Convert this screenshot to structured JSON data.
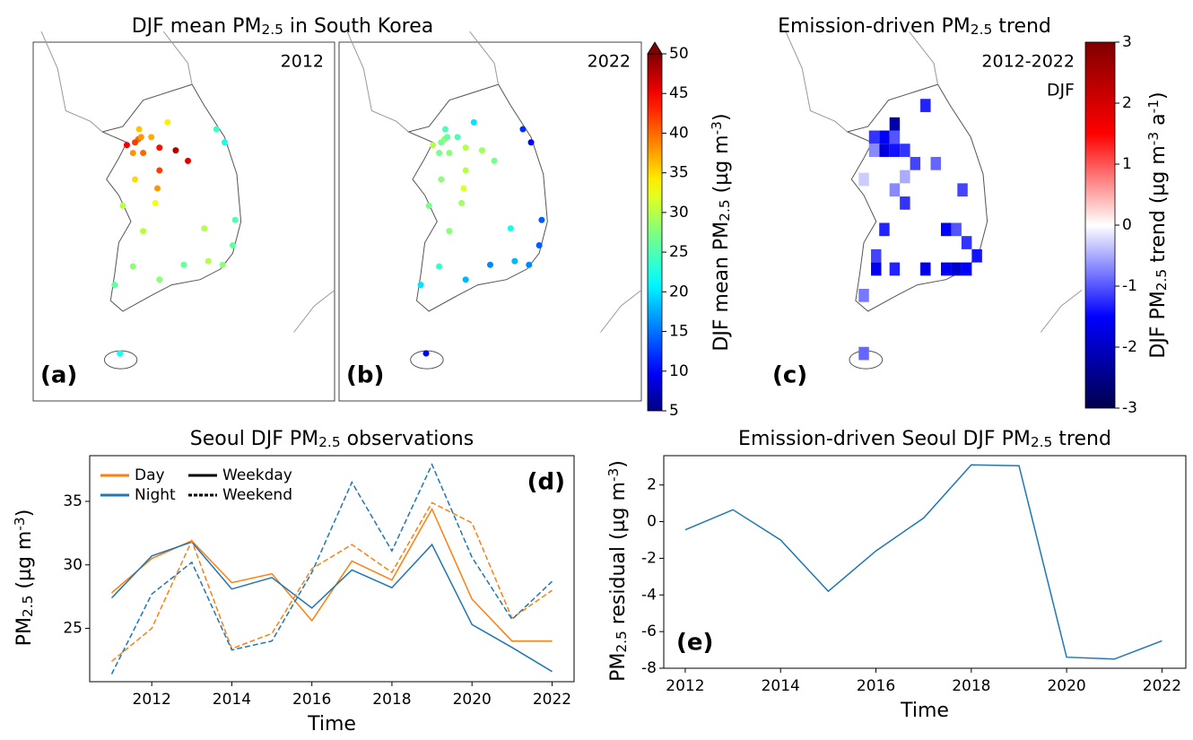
{
  "chart_data": [
    {
      "type": "map",
      "label": "(a)",
      "annotation": "2012",
      "title": [
        {
          "text": "DJF mean PM"
        },
        {
          "text": "2.5",
          "script": "sub"
        },
        {
          "text": " in South Korea"
        }
      ],
      "lonlim": [
        124.4,
        131.8
      ],
      "latlim": [
        32.6,
        39.4
      ],
      "colormap": "jet",
      "clim": [
        5,
        50
      ],
      "lon": [
        126.98,
        126.9,
        127.05,
        126.7,
        126.85,
        127.1,
        127.0,
        127.3,
        127.5,
        127.9,
        128.2,
        127.5,
        127.45,
        127.4,
        126.9,
        126.6,
        127.1,
        126.85,
        126.4,
        127.5,
        128.6,
        129.05,
        129.3,
        128.7,
        129.36,
        128.9,
        129.1,
        127.7,
        126.53,
        128.1
      ],
      "lat": [
        37.56,
        37.5,
        37.6,
        37.45,
        37.3,
        37.3,
        37.75,
        37.6,
        37.4,
        37.35,
        37.15,
        36.97,
        36.63,
        36.35,
        36.8,
        36.3,
        35.82,
        35.15,
        34.8,
        34.9,
        35.87,
        35.18,
        35.55,
        35.25,
        36.03,
        37.75,
        37.5,
        37.88,
        33.5,
        35.18
      ],
      "values": [
        40,
        42,
        38,
        45,
        38,
        40,
        36,
        37,
        44,
        48,
        46,
        42,
        38,
        33,
        35,
        30,
        30,
        28,
        26,
        28,
        30,
        28,
        26,
        30,
        25,
        24,
        22,
        34,
        22,
        26
      ]
    },
    {
      "type": "map",
      "label": "(b)",
      "annotation": "2022",
      "lonlim": [
        124.4,
        131.8
      ],
      "latlim": [
        32.6,
        39.4
      ],
      "colormap": "jet",
      "clim": [
        5,
        50
      ],
      "lon": [
        126.98,
        126.9,
        127.05,
        126.7,
        126.85,
        127.1,
        127.0,
        127.3,
        127.5,
        127.9,
        128.2,
        127.5,
        127.45,
        127.4,
        126.9,
        126.6,
        127.1,
        126.85,
        126.4,
        127.5,
        128.6,
        129.05,
        129.3,
        128.7,
        129.36,
        128.9,
        129.1,
        127.7,
        126.53,
        128.1
      ],
      "lat": [
        37.56,
        37.5,
        37.6,
        37.45,
        37.3,
        37.3,
        37.75,
        37.6,
        37.4,
        37.35,
        37.15,
        36.97,
        36.63,
        36.35,
        36.8,
        36.3,
        35.82,
        35.15,
        34.8,
        34.9,
        35.87,
        35.18,
        35.55,
        35.25,
        36.03,
        37.75,
        37.5,
        37.88,
        33.5,
        35.18
      ],
      "values": [
        28,
        27,
        26,
        30,
        27,
        28,
        25,
        25,
        30,
        29,
        27,
        30,
        32,
        29,
        28,
        27,
        28,
        24,
        20,
        18,
        22,
        16,
        14,
        18,
        14,
        12,
        10,
        20,
        10,
        16
      ],
      "colorbar": {
        "label": [
          {
            "text": "DJF mean PM"
          },
          {
            "text": "2.5",
            "script": "sub"
          },
          {
            "text": " (µg m"
          },
          {
            "text": "-3",
            "script": "sup"
          },
          {
            "text": ")"
          }
        ],
        "ticks": [
          5,
          10,
          15,
          20,
          25,
          30,
          35,
          40,
          45,
          50
        ],
        "extend": "max"
      }
    },
    {
      "type": "grid-map",
      "label": "(c)",
      "annotation": [
        "2012-2022",
        "DJF"
      ],
      "title": [
        {
          "text": "Emission-driven PM"
        },
        {
          "text": "2.5",
          "script": "sub"
        },
        {
          "text": " trend"
        }
      ],
      "lonlim": [
        124.1,
        131.8
      ],
      "latlim": [
        32.6,
        39.4
      ],
      "colormap": "seismic",
      "clim": [
        -3,
        3
      ],
      "cell": 0.25,
      "lon": [
        127.0,
        126.75,
        127.25,
        127.0,
        127.25,
        126.75,
        127.5,
        127.25,
        128.0,
        127.75,
        128.25,
        127.5,
        127.25,
        127.5,
        126.5,
        128.5,
        128.75,
        129.0,
        129.25,
        127.0,
        126.8,
        126.8,
        127.25,
        128.0,
        128.5,
        128.75,
        129.0,
        128.9,
        126.5,
        126.5
      ],
      "lat": [
        37.6,
        37.6,
        37.6,
        37.35,
        37.35,
        37.35,
        37.35,
        37.85,
        38.2,
        37.1,
        37.1,
        36.85,
        36.6,
        36.35,
        36.8,
        35.85,
        35.85,
        35.6,
        35.35,
        35.85,
        35.35,
        35.1,
        35.1,
        35.1,
        35.1,
        35.1,
        35.1,
        36.6,
        33.5,
        34.6
      ],
      "values": [
        -1.5,
        -1.2,
        -1.0,
        -1.8,
        -1.4,
        -0.7,
        -1.2,
        -2.2,
        -1.3,
        -1.1,
        -0.9,
        -0.5,
        -0.7,
        -1.2,
        -0.3,
        -1.5,
        -1.0,
        -1.2,
        -1.4,
        -1.3,
        -1.1,
        -1.6,
        -1.3,
        -1.7,
        -1.6,
        -1.9,
        -1.5,
        -1.1,
        -0.9,
        -0.8
      ],
      "colorbar": {
        "label": [
          {
            "text": "DJF PM"
          },
          {
            "text": "2.5",
            "script": "sub"
          },
          {
            "text": " trend (µg m"
          },
          {
            "text": "-3",
            "script": "sup"
          },
          {
            "text": " a"
          },
          {
            "text": "-1",
            "script": "sup"
          },
          {
            "text": ")"
          }
        ],
        "ticks": [
          -3,
          -2,
          -1,
          0,
          1,
          2,
          3
        ]
      }
    },
    {
      "type": "line",
      "label": "(d)",
      "title": [
        {
          "text": "Seoul DJF PM"
        },
        {
          "text": "2.5",
          "script": "sub"
        },
        {
          "text": " observations"
        }
      ],
      "xlabel": "Time",
      "ylabel": [
        {
          "text": "PM"
        },
        {
          "text": "2.5",
          "script": "sub"
        },
        {
          "text": " (µg m"
        },
        {
          "text": "-3",
          "script": "sup"
        },
        {
          "text": ")"
        }
      ],
      "x": [
        2011,
        2012,
        2013,
        2014,
        2015,
        2016,
        2017,
        2018,
        2019,
        2020,
        2021,
        2022
      ],
      "series": [
        {
          "color": "#ff7f0e",
          "dash": false,
          "values": [
            27.8,
            30.5,
            31.9,
            28.6,
            29.3,
            25.6,
            30.3,
            28.8,
            34.4,
            27.3,
            24.0,
            24.0
          ]
        },
        {
          "color": "#1f77b4",
          "dash": false,
          "values": [
            27.4,
            30.7,
            31.8,
            28.1,
            29.0,
            26.6,
            29.6,
            28.2,
            31.6,
            25.3,
            23.5,
            21.6
          ]
        },
        {
          "color": "#ff7f0e",
          "dash": true,
          "values": [
            22.4,
            25.0,
            31.9,
            23.4,
            24.6,
            29.7,
            31.6,
            29.4,
            34.9,
            33.3,
            25.8,
            28.0
          ]
        },
        {
          "color": "#1f77b4",
          "dash": true,
          "values": [
            21.4,
            27.7,
            30.2,
            23.3,
            24.0,
            29.4,
            36.5,
            31.1,
            37.9,
            30.6,
            25.7,
            28.7
          ]
        }
      ],
      "legend": [
        {
          "name": "Day",
          "color": "#ff7f0e"
        },
        {
          "name": "Night",
          "color": "#1f77b4"
        },
        {
          "name": "Weekday",
          "dash": false
        },
        {
          "name": "Weekend",
          "dash": true
        }
      ],
      "xlim": [
        2010.45,
        2022.55
      ],
      "xticks": [
        2012,
        2014,
        2016,
        2018,
        2020,
        2022
      ],
      "ylim": [
        20.8,
        38.6
      ],
      "yticks": [
        25,
        30,
        35
      ]
    },
    {
      "type": "line",
      "label": "(e)",
      "title": [
        {
          "text": "Emission-driven Seoul DJF PM"
        },
        {
          "text": "2.5",
          "script": "sub"
        },
        {
          "text": " trend"
        }
      ],
      "xlabel": "Time",
      "ylabel": [
        {
          "text": "PM"
        },
        {
          "text": "2.5",
          "script": "sub"
        },
        {
          "text": " residual (µg m"
        },
        {
          "text": "-3",
          "script": "sup"
        },
        {
          "text": ")"
        }
      ],
      "x": [
        2012,
        2013,
        2014,
        2015,
        2016,
        2017,
        2018,
        2019,
        2020,
        2021,
        2022
      ],
      "series": [
        {
          "color": "#1f77b4",
          "dash": false,
          "values": [
            -0.45,
            0.65,
            -1.0,
            -3.8,
            -1.6,
            0.2,
            3.1,
            3.05,
            -7.4,
            -7.5,
            -6.5
          ]
        }
      ],
      "xlim": [
        2011.55,
        2022.5
      ],
      "xticks": [
        2012,
        2014,
        2016,
        2018,
        2020,
        2022
      ],
      "ylim": [
        -8,
        3.6
      ],
      "yticks": [
        -8,
        -6,
        -4,
        -2,
        0,
        2
      ]
    }
  ]
}
